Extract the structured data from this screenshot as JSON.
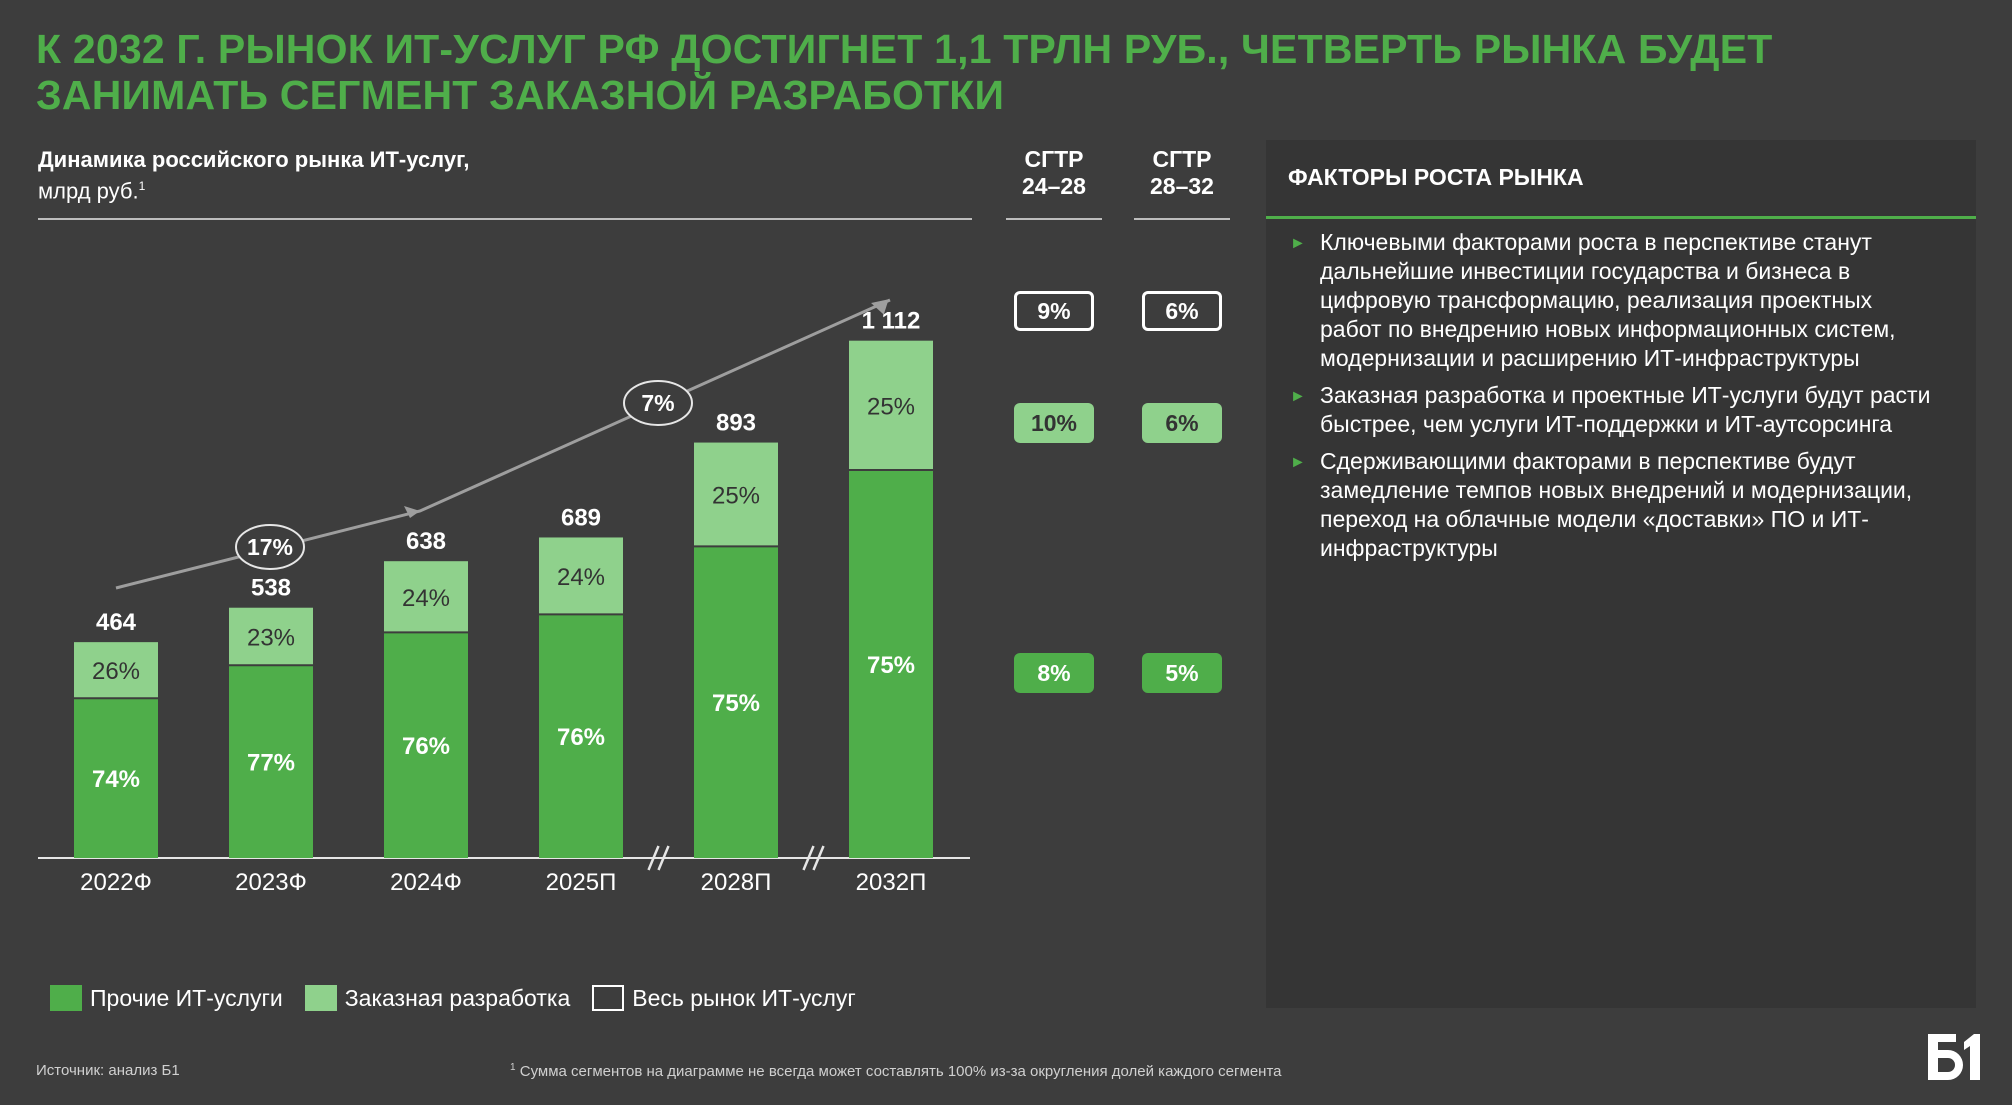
{
  "title": {
    "line1": "К 2032 Г. РЫНОК ИТ-УСЛУГ РФ ДОСТИГНЕТ 1,1 ТРЛН РУБ., ЧЕТВЕРТЬ РЫНКА БУДЕТ",
    "line2": "ЗАНИМАТЬ СЕГМЕНТ ЗАКАЗНОЙ РАЗРАБОТКИ"
  },
  "colors": {
    "accent": "#4fae4a",
    "custom_dev": "#8fd18c",
    "background": "#3d3d3d",
    "panel": "#353535"
  },
  "chart_data": {
    "type": "bar",
    "stacked": true,
    "title": "Динамика российского рынка ИТ-услуг,",
    "subtitle": "млрд руб.",
    "subtitle_footnote": "1",
    "categories": [
      "2022Ф",
      "2023Ф",
      "2024Ф",
      "2025П",
      "2028П",
      "2032П"
    ],
    "totals": [
      464,
      538,
      638,
      689,
      893,
      1112
    ],
    "total_labels": [
      "464",
      "538",
      "638",
      "689",
      "893",
      "1 112"
    ],
    "series": [
      {
        "name": "Прочие ИТ-услуги",
        "shares": [
          74,
          77,
          76,
          76,
          75,
          75
        ],
        "labels": [
          "74%",
          "77%",
          "76%",
          "76%",
          "75%",
          "75%"
        ]
      },
      {
        "name": "Заказная разработка",
        "shares": [
          26,
          23,
          24,
          24,
          25,
          25
        ],
        "labels": [
          "26%",
          "23%",
          "24%",
          "24%",
          "25%",
          "25%"
        ]
      }
    ],
    "axis_breaks_after": [
      "2025П",
      "2028П"
    ],
    "growth_annotations": [
      {
        "label": "17%",
        "from": "2022Ф",
        "to": "2024Ф"
      },
      {
        "label": "7%",
        "from": "2024Ф",
        "to": "2032П"
      }
    ],
    "ylim": [
      0,
      1150
    ],
    "legend": [
      "Прочие ИТ-услуги",
      "Заказная разработка",
      "Весь рынок ИТ-услуг"
    ],
    "legend_position": "bottom-left",
    "cagr": {
      "columns": [
        {
          "line1": "CГТР",
          "line2": "24–28"
        },
        {
          "line1": "CГТР",
          "line2": "28–32"
        }
      ],
      "rows": [
        {
          "series": "Весь рынок ИТ-услуг",
          "values": [
            "9%",
            "6%"
          ]
        },
        {
          "series": "Заказная разработка",
          "values": [
            "10%",
            "6%"
          ]
        },
        {
          "series": "Прочие ИТ-услуги",
          "values": [
            "8%",
            "5%"
          ]
        }
      ]
    }
  },
  "panel": {
    "title": "ФАКТОРЫ РОСТА РЫНКА",
    "bullets": [
      {
        "lines": [
          "Ключевыми факторами роста в перспективе станут",
          "дальнейшие инвестиции государства и бизнеса в",
          "цифровую трансформацию, реализация проектных",
          "работ по внедрению новых информационных систем,",
          "модернизации и расширению ИТ-инфраструктуры"
        ]
      },
      {
        "lines": [
          "Заказная разработка и проектные ИТ-услуги будут расти",
          "быстрее, чем услуги ИТ-поддержки и ИТ-аутсорсинга"
        ]
      },
      {
        "lines": [
          "Сдерживающими факторами в перспективе будут",
          "замедление темпов новых внедрений и модернизации,",
          "переход на облачные модели «доставки» ПО и ИТ-",
          "инфраструктуры"
        ]
      }
    ]
  },
  "legend": {
    "other": "Прочие ИТ-услуги",
    "custom": "Заказная разработка",
    "total": "Весь рынок ИТ-услуг"
  },
  "footer": {
    "source": "Источник: анализ Б1",
    "note_mark": "1",
    "note": "Сумма сегментов на диаграмме не всегда может составлять 100% из-за округления долей каждого сегмента"
  },
  "logo": {
    "text": "Б1"
  }
}
